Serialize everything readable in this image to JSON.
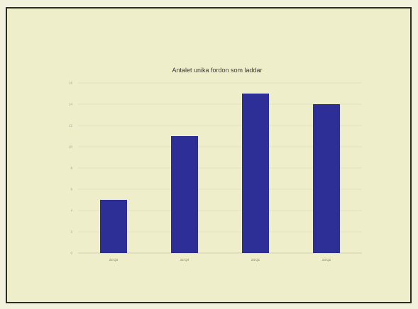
{
  "chart_data": {
    "type": "bar",
    "title": "Antalet unika fordon som laddar",
    "xlabel": "",
    "ylabel": "",
    "categories": [
      "22:Q3",
      "22:Q4",
      "23:Q1",
      "23:Q2"
    ],
    "values": [
      5,
      11,
      15,
      14
    ],
    "ylim": [
      0,
      16
    ],
    "yticks": [
      0,
      2,
      4,
      6,
      8,
      10,
      12,
      14,
      16
    ],
    "grid": true,
    "legend": "none",
    "colors": {
      "bar": "#2e2f96",
      "background": "#efeecb"
    }
  }
}
